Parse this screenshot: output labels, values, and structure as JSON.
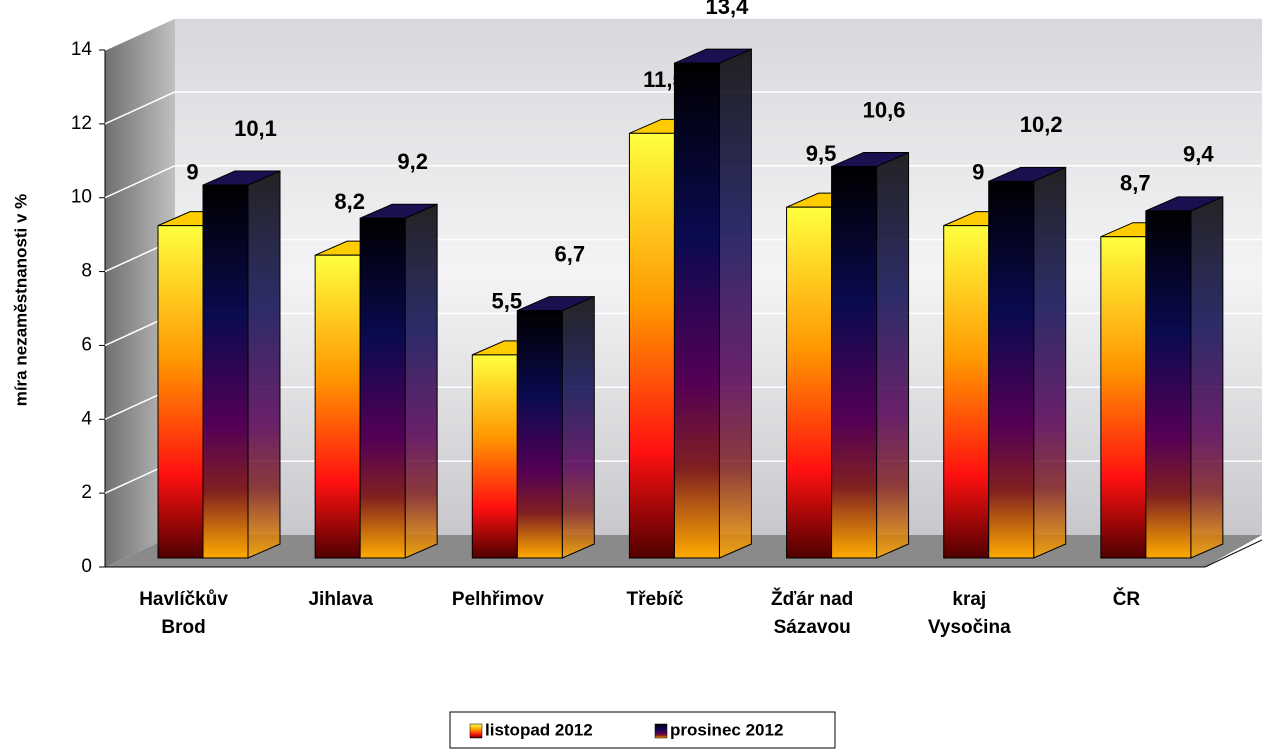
{
  "chart_data": {
    "type": "bar3d",
    "y_label": "míra nezaměstnanosti v %",
    "categories": [
      [
        "Havlíčkův",
        "Brod"
      ],
      [
        "Jihlava"
      ],
      [
        "Pelhřimov"
      ],
      [
        "Třebíč"
      ],
      [
        "Žďár nad",
        "Sázavou"
      ],
      [
        "kraj",
        "Vysočina"
      ],
      [
        "ČR"
      ]
    ],
    "series": [
      {
        "name": "listopad 2012",
        "color": "#ffcc00",
        "values": [
          9,
          8.2,
          5.5,
          11.5,
          9.5,
          9,
          8.7
        ],
        "value_labels": [
          "9",
          "8,2",
          "5,5",
          "11,5",
          "9,5",
          "9",
          "8,7"
        ]
      },
      {
        "name": "prosinec 2012",
        "color": "#1a1050",
        "values": [
          10.1,
          9.2,
          6.7,
          13.4,
          10.6,
          10.2,
          9.4
        ],
        "value_labels": [
          "10,1",
          "9,2",
          "6,7",
          "13,4",
          "10,6",
          "10,2",
          "9,4"
        ]
      }
    ],
    "ylim": [
      0,
      14
    ],
    "yticks": [
      0,
      2,
      4,
      6,
      8,
      10,
      12,
      14
    ],
    "grid": true,
    "legend": "bottom"
  }
}
